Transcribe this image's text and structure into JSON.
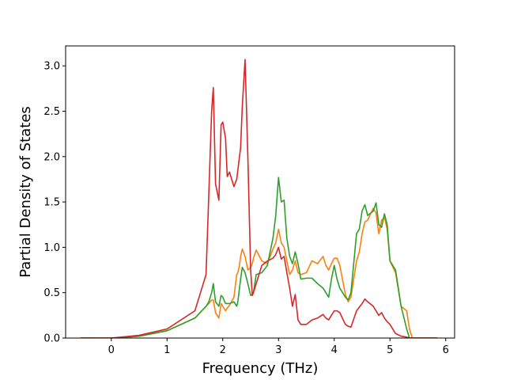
{
  "chart_data": {
    "type": "line",
    "x_label": "Frequency (THz)",
    "y_label": "Partial Density of States",
    "xlim": [
      -0.82,
      6.16
    ],
    "ylim": [
      0,
      3.22
    ],
    "xticks": [
      0,
      1,
      2,
      3,
      4,
      5,
      6
    ],
    "yticks": [
      {
        "value": 0,
        "label": "0.0"
      },
      {
        "value": 0.5,
        "label": "0.5"
      },
      {
        "value": 1,
        "label": "1.0"
      },
      {
        "value": 1.5,
        "label": "1.5"
      },
      {
        "value": 2,
        "label": "2.0"
      },
      {
        "value": 2.5,
        "label": "2.5"
      },
      {
        "value": 3,
        "label": "3.0"
      }
    ],
    "grid": false,
    "x": [
      -0.55,
      0,
      0.5,
      1.0,
      1.5,
      1.7,
      1.75,
      1.8,
      1.83,
      1.87,
      1.93,
      1.97,
      2.0,
      2.05,
      2.08,
      2.12,
      2.2,
      2.25,
      2.27,
      2.3,
      2.32,
      2.35,
      2.4,
      2.45,
      2.5,
      2.53,
      2.55,
      2.6,
      2.7,
      2.8,
      2.9,
      2.95,
      3.0,
      3.05,
      3.1,
      3.15,
      3.2,
      3.25,
      3.3,
      3.35,
      3.4,
      3.5,
      3.6,
      3.7,
      3.8,
      3.85,
      3.9,
      3.95,
      4.0,
      4.05,
      4.1,
      4.2,
      4.25,
      4.3,
      4.4,
      4.45,
      4.5,
      4.55,
      4.6,
      4.7,
      4.75,
      4.8,
      4.85,
      4.9,
      4.95,
      5.0,
      5.1,
      5.2,
      5.3,
      5.35,
      5.4,
      5.85
    ],
    "series": [
      {
        "color": "#ff7f0e",
        "values": [
          0,
          0,
          0.02,
          0.08,
          0.22,
          0.35,
          0.38,
          0.42,
          0.42,
          0.28,
          0.22,
          0.38,
          0.35,
          0.3,
          0.33,
          0.36,
          0.45,
          0.7,
          0.72,
          0.8,
          0.9,
          0.98,
          0.9,
          0.75,
          0.78,
          0.82,
          0.88,
          0.97,
          0.85,
          0.82,
          0.98,
          1.05,
          1.2,
          1.05,
          1.0,
          0.85,
          0.7,
          0.75,
          0.85,
          0.72,
          0.7,
          0.72,
          0.85,
          0.82,
          0.9,
          0.8,
          0.75,
          0.82,
          0.88,
          0.88,
          0.8,
          0.48,
          0.4,
          0.45,
          0.85,
          0.95,
          1.15,
          1.28,
          1.3,
          1.43,
          1.38,
          1.15,
          1.3,
          1.33,
          1.2,
          0.85,
          0.72,
          0.35,
          0.3,
          0.1,
          0,
          0
        ]
      },
      {
        "color": "#2ca02c",
        "values": [
          0,
          0,
          0.02,
          0.08,
          0.22,
          0.35,
          0.4,
          0.5,
          0.6,
          0.4,
          0.35,
          0.47,
          0.45,
          0.38,
          0.38,
          0.38,
          0.4,
          0.35,
          0.4,
          0.55,
          0.65,
          0.78,
          0.72,
          0.6,
          0.47,
          0.48,
          0.5,
          0.7,
          0.72,
          0.8,
          1.1,
          1.35,
          1.77,
          1.5,
          1.52,
          1.1,
          0.9,
          0.82,
          0.95,
          0.82,
          0.65,
          0.66,
          0.66,
          0.6,
          0.55,
          0.5,
          0.45,
          0.65,
          0.8,
          0.65,
          0.55,
          0.45,
          0.42,
          0.5,
          1.15,
          1.2,
          1.4,
          1.47,
          1.35,
          1.4,
          1.49,
          1.25,
          1.22,
          1.37,
          1.25,
          0.85,
          0.75,
          0.35,
          0.1,
          0,
          0,
          0
        ]
      },
      {
        "color": "#d62728",
        "values": [
          0,
          0,
          0.03,
          0.1,
          0.3,
          0.7,
          1.6,
          2.5,
          2.76,
          1.7,
          1.52,
          2.35,
          2.38,
          2.2,
          1.78,
          1.83,
          1.67,
          1.75,
          1.85,
          2.0,
          2.1,
          2.55,
          3.07,
          2.0,
          0.75,
          0.47,
          0.5,
          0.6,
          0.8,
          0.85,
          0.88,
          0.92,
          1.0,
          0.87,
          0.9,
          0.72,
          0.55,
          0.35,
          0.48,
          0.2,
          0.15,
          0.15,
          0.2,
          0.22,
          0.26,
          0.22,
          0.2,
          0.25,
          0.3,
          0.3,
          0.28,
          0.15,
          0.13,
          0.12,
          0.3,
          0.34,
          0.38,
          0.43,
          0.4,
          0.35,
          0.3,
          0.25,
          0.28,
          0.22,
          0.18,
          0.15,
          0.05,
          0.02,
          0.01,
          0,
          0,
          0
        ]
      }
    ]
  }
}
